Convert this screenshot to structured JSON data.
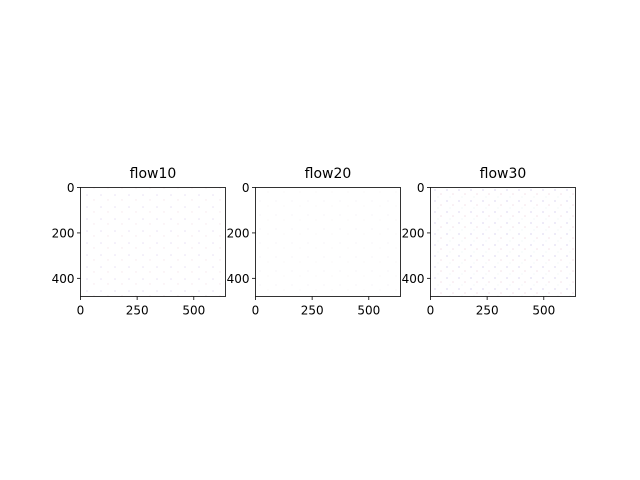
{
  "chart_data": [
    {
      "type": "heatmap",
      "title": "flow10",
      "xlim": [
        0,
        640
      ],
      "ylim": [
        480,
        0
      ],
      "x_ticks": [
        "0",
        "250",
        "500"
      ],
      "y_ticks": [
        "0",
        "200",
        "400"
      ],
      "x_tick_values": [
        0,
        250,
        500
      ],
      "y_tick_values": [
        0,
        200,
        400
      ],
      "image": "optical flow visualization, mostly white with faint colored speckles"
    },
    {
      "type": "heatmap",
      "title": "flow20",
      "xlim": [
        0,
        640
      ],
      "ylim": [
        480,
        0
      ],
      "x_ticks": [
        "0",
        "250",
        "500"
      ],
      "y_ticks": [
        "0",
        "200",
        "400"
      ],
      "x_tick_values": [
        0,
        250,
        500
      ],
      "y_tick_values": [
        0,
        200,
        400
      ],
      "image": "optical flow visualization, mostly white with faint colored speckles"
    },
    {
      "type": "heatmap",
      "title": "flow30",
      "xlim": [
        0,
        640
      ],
      "ylim": [
        480,
        0
      ],
      "x_ticks": [
        "0",
        "250",
        "500"
      ],
      "y_ticks": [
        "0",
        "200",
        "400"
      ],
      "x_tick_values": [
        0,
        250,
        500
      ],
      "y_tick_values": [
        0,
        200,
        400
      ],
      "image": "optical flow visualization, mostly white with faint colored speckles"
    }
  ]
}
